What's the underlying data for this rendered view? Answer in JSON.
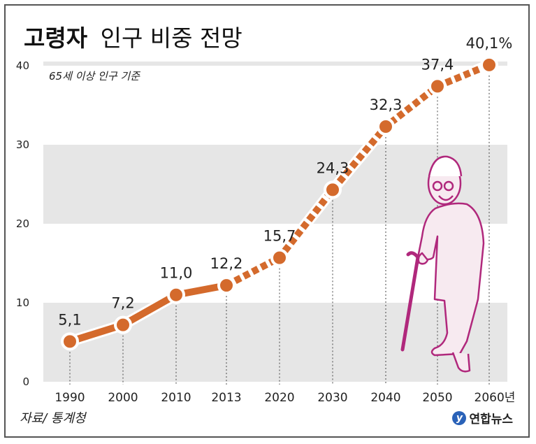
{
  "title": {
    "bold": "고령자",
    "normal": "인구 비중 전망"
  },
  "subtitle": "65세 이상 인구 기준",
  "source": "자료/ 통계청",
  "logo": "연합뉴스",
  "colors": {
    "line": "#d46a2c",
    "band": "#e6e6e6",
    "grid_line": "#ffffff"
  },
  "chart_data": {
    "type": "line",
    "title": "고령자 인구 비중 전망",
    "subtitle": "65세 이상 인구 기준",
    "categories": [
      "1990",
      "2000",
      "2010",
      "2013",
      "2020",
      "2030",
      "2040",
      "2050",
      "2060년"
    ],
    "values": [
      5.1,
      7.2,
      11.0,
      12.2,
      15.7,
      24.3,
      32.3,
      37.4,
      40.1
    ],
    "value_labels": [
      "5,1",
      "7,2",
      "11,0",
      "12,2",
      "15,7",
      "24,3",
      "32,3",
      "37,4",
      "40,1%"
    ],
    "projection_start_index": 3,
    "ylim": [
      0,
      40
    ],
    "yticks": [
      0,
      10,
      20,
      30,
      40
    ],
    "grid": true,
    "legend": "none"
  }
}
